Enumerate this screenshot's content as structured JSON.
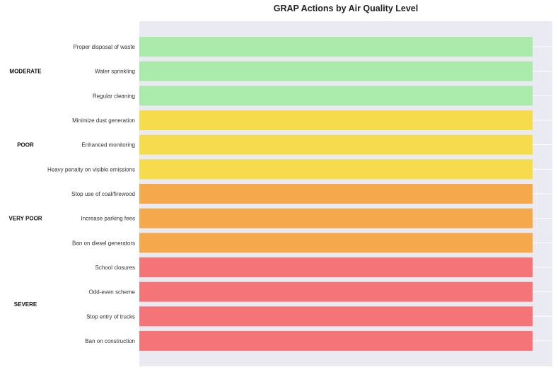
{
  "chart_data": {
    "type": "bar",
    "orientation": "horizontal",
    "title": "GRAP Actions by Air Quality Level",
    "xlabel": "",
    "ylabel": "",
    "xlim": [
      0,
      1.05
    ],
    "grid": true,
    "categories": [
      "Proper disposal of waste",
      "Water sprinkling",
      "Regular cleaning",
      "Minimize dust generation",
      "Enhanced monitoring",
      "Heavy penalty on visible emissions",
      "Stop use of coal/firewood",
      "Increase parking fees",
      "Ban on diesel generators",
      "School closures",
      "Odd-even scheme",
      "Stop entry of trucks",
      "Ban on construction"
    ],
    "values": [
      1,
      1,
      1,
      1,
      1,
      1,
      1,
      1,
      1,
      1,
      1,
      1,
      1
    ],
    "levels": [
      "MODERATE",
      "MODERATE",
      "MODERATE",
      "POOR",
      "POOR",
      "POOR",
      "VERY POOR",
      "VERY POOR",
      "VERY POOR",
      "SEVERE",
      "SEVERE",
      "SEVERE",
      "SEVERE"
    ],
    "groups": [
      {
        "name": "MODERATE",
        "color": "#aaeaaa"
      },
      {
        "name": "POOR",
        "color": "#f6dc4c"
      },
      {
        "name": "VERY POOR",
        "color": "#f6a84c"
      },
      {
        "name": "SEVERE",
        "color": "#f57477"
      }
    ]
  }
}
